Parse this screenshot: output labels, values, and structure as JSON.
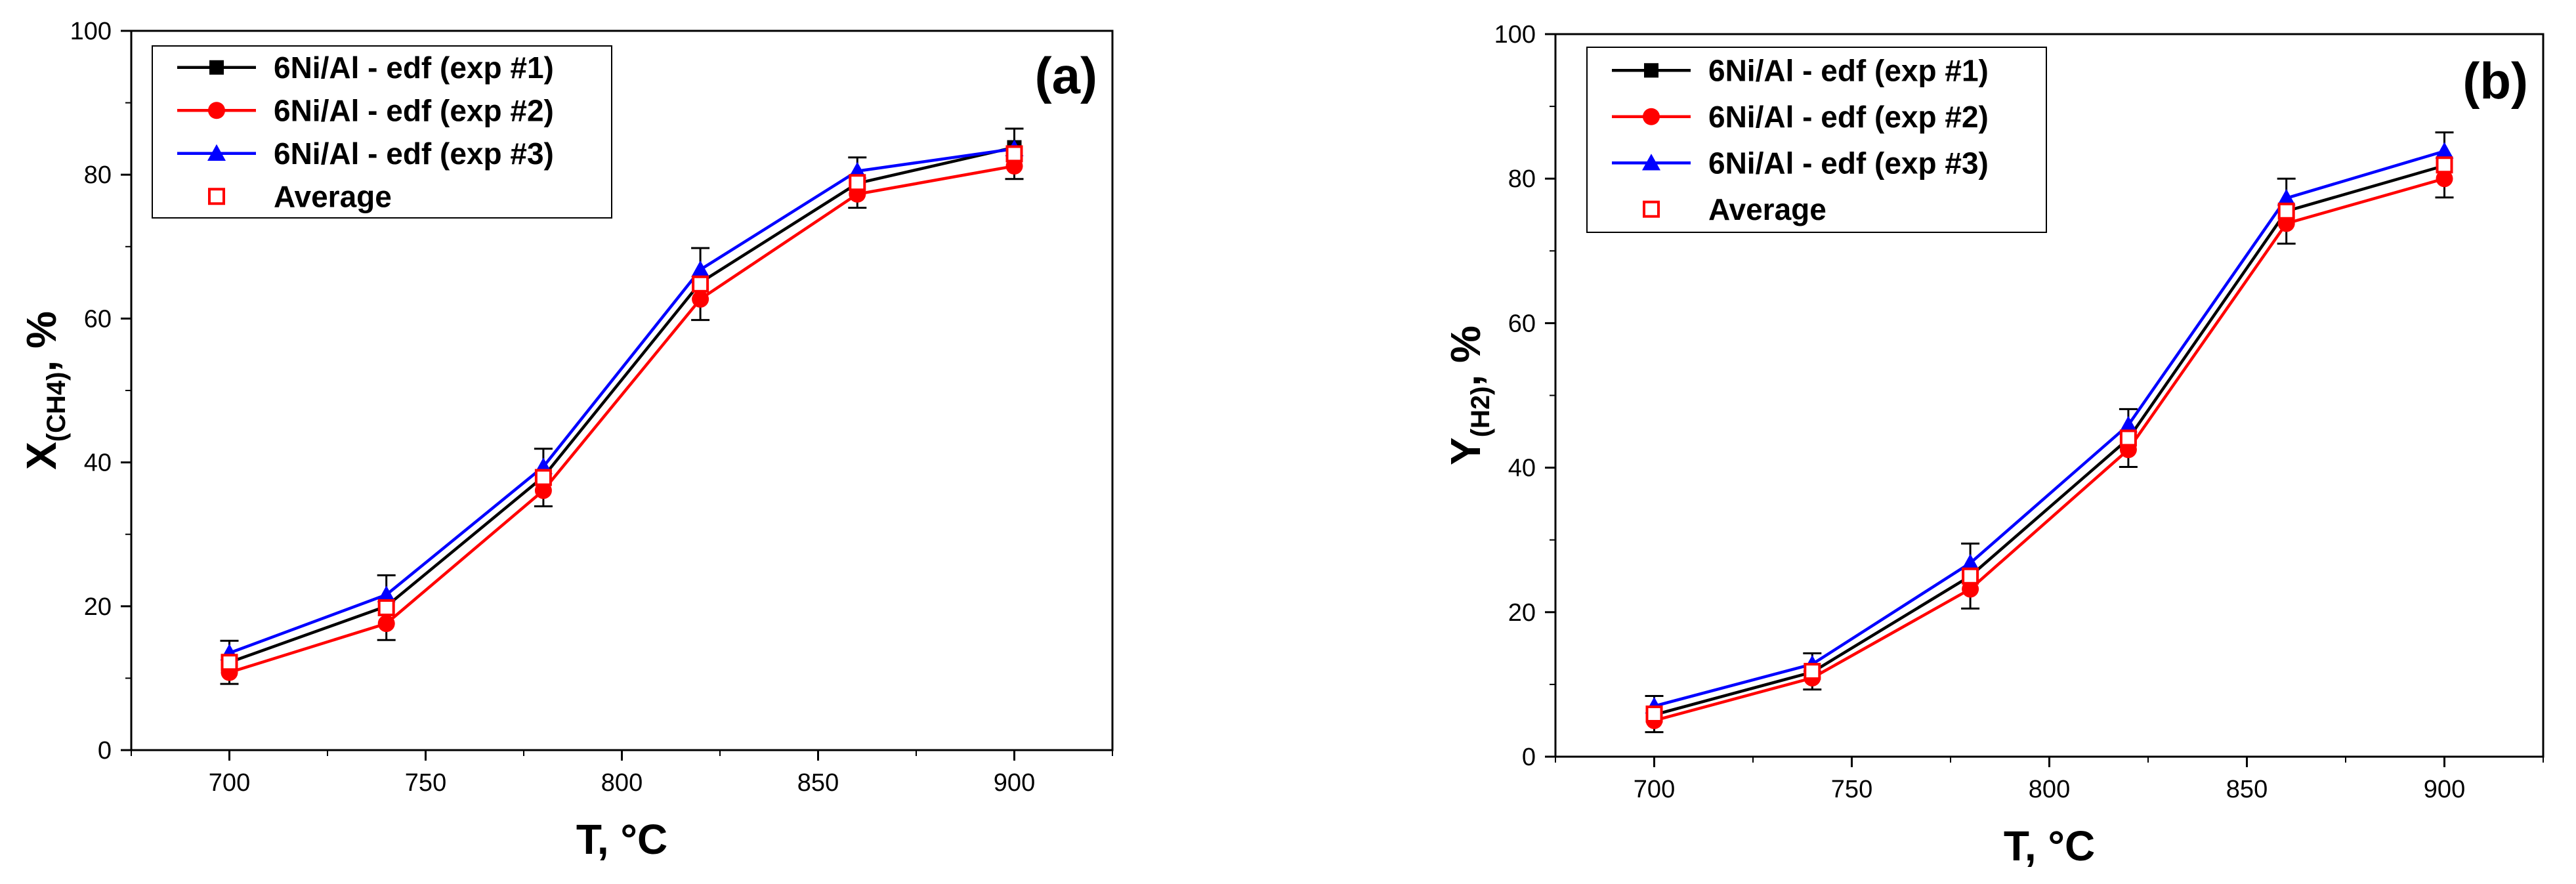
{
  "chart_data": [
    {
      "type": "line",
      "panel_label": "(a)",
      "xlabel": "T, °C",
      "ylabel_main": "X",
      "ylabel_sub": "(CH4)",
      "ylabel_suffix": ", %",
      "xlim": [
        675,
        925
      ],
      "ylim": [
        0,
        100
      ],
      "xticks": [
        700,
        750,
        800,
        850,
        900
      ],
      "yticks": [
        0,
        20,
        40,
        60,
        80,
        100
      ],
      "x": [
        700,
        740,
        780,
        820,
        860,
        900
      ],
      "legend_position": "top-left",
      "series": [
        {
          "name": "6Ni/Al - edf (exp #1)",
          "color": "#000000",
          "marker": "square",
          "values": [
            12.2,
            20.0,
            38.0,
            65.0,
            78.8,
            83.8
          ]
        },
        {
          "name": "6Ni/Al - edf (exp #2)",
          "color": "#ff0000",
          "marker": "circle",
          "values": [
            10.8,
            17.6,
            36.1,
            62.7,
            77.3,
            81.2
          ]
        },
        {
          "name": "6Ni/Al - edf (exp #3)",
          "color": "#0000ff",
          "marker": "triangle",
          "values": [
            13.5,
            21.6,
            39.4,
            66.8,
            80.5,
            83.6
          ]
        },
        {
          "name": "Average",
          "color": "#ff0000",
          "marker": "open-square",
          "values": [
            12.2,
            19.8,
            37.9,
            64.8,
            78.9,
            82.9
          ],
          "error": [
            3.0,
            4.5,
            4.0,
            5.0,
            3.5,
            3.5
          ],
          "error_color": "#000000"
        }
      ]
    },
    {
      "type": "line",
      "panel_label": "(b)",
      "xlabel": "T, °C",
      "ylabel_main": "Y",
      "ylabel_sub": "(H2)",
      "ylabel_suffix": ", %",
      "xlim": [
        675,
        925
      ],
      "ylim": [
        0,
        100
      ],
      "xticks": [
        700,
        750,
        800,
        850,
        900
      ],
      "yticks": [
        0,
        20,
        40,
        60,
        80,
        100
      ],
      "x": [
        700,
        740,
        780,
        820,
        860,
        900
      ],
      "legend_position": "top-left",
      "series": [
        {
          "name": "6Ni/Al - edf (exp #1)",
          "color": "#000000",
          "marker": "square",
          "values": [
            5.8,
            11.7,
            25.0,
            44.0,
            75.5,
            81.8
          ]
        },
        {
          "name": "6Ni/Al - edf (exp #2)",
          "color": "#ff0000",
          "marker": "circle",
          "values": [
            5.0,
            10.9,
            23.2,
            42.5,
            73.8,
            80.0
          ]
        },
        {
          "name": "6Ni/Al - edf (exp #3)",
          "color": "#0000ff",
          "marker": "triangle",
          "values": [
            7.0,
            12.8,
            26.8,
            45.9,
            77.3,
            83.8
          ]
        },
        {
          "name": "Average",
          "color": "#ff0000",
          "marker": "open-square",
          "values": [
            5.9,
            11.8,
            25.0,
            44.1,
            75.5,
            81.9
          ],
          "error": [
            2.5,
            2.5,
            4.5,
            4.0,
            4.5,
            4.5
          ],
          "error_color": "#000000"
        }
      ]
    }
  ]
}
